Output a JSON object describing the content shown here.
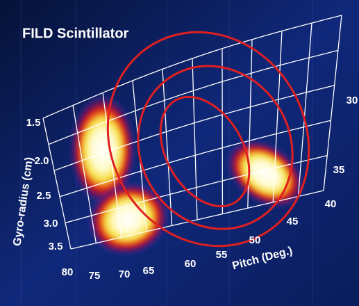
{
  "header": {
    "title": "FILD Scintillator"
  },
  "gyro_axis": {
    "label": "Gyro-radius (cm)",
    "ticks": [
      "1.5",
      "2.0",
      "2.5",
      "3.0",
      "3.5"
    ]
  },
  "pitch_axis": {
    "label": "Pitch (Deg.)",
    "ticks": [
      "80",
      "75",
      "70",
      "65",
      "60",
      "55",
      "50",
      "45",
      "40",
      "35",
      "30"
    ]
  }
}
